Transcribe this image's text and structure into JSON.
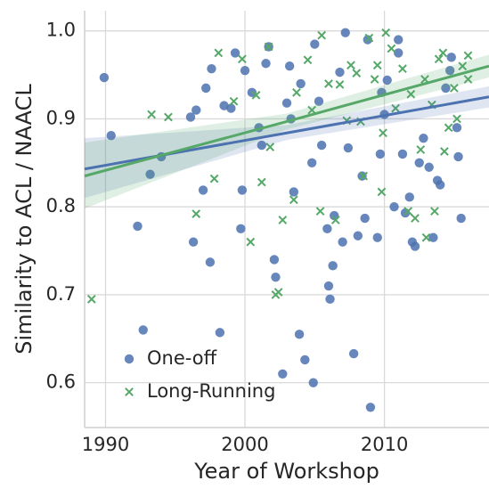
{
  "chart_data": {
    "type": "scatter",
    "xlabel": "Year of Workshop",
    "ylabel": "Similarity to ACL / NAACL",
    "xlim": [
      1988.5,
      2017.5
    ],
    "ylim": [
      0.549,
      1.023
    ],
    "xticks": [
      1990,
      2000,
      2010
    ],
    "yticks": [
      0.6,
      0.7,
      0.8,
      0.9,
      {
        "value": 1,
        "label": "1.0"
      }
    ],
    "grid": true,
    "legend": "lower left",
    "series": [
      {
        "name": "One-off",
        "color": "#4c72b0",
        "marker": "o",
        "x": [
          1989.9,
          1990.4,
          1992.3,
          1992.7,
          1993.2,
          1994,
          1996.1,
          1996.3,
          1996.5,
          1997,
          1997.2,
          1997.5,
          1997.6,
          1998.2,
          1998.5,
          1999,
          1999.3,
          1999.7,
          1999.8,
          2000,
          2000.5,
          2001,
          2001.5,
          2001.7,
          2002.1,
          2002.2,
          2002.7,
          2003,
          2003.3,
          2003.5,
          2003.9,
          2004,
          2004.3,
          2004.8,
          2004.9,
          2005,
          2005.3,
          2005.5,
          2005.9,
          2006,
          2006.1,
          2006.3,
          2006.8,
          2007,
          2007.4,
          2007.8,
          2008.1,
          2008.4,
          2008.6,
          2008.8,
          2009,
          2009.5,
          2009.7,
          2010,
          2010.2,
          2010.7,
          2011,
          2011.3,
          2011.5,
          2011.8,
          2012,
          2012.2,
          2012.5,
          2012.8,
          2013.2,
          2013.5,
          2013.8,
          2014,
          2014.4,
          2014.7,
          2015.2,
          2015.5,
          2015.3,
          2014.8,
          2006.4,
          2007.2,
          2003.2,
          2001.2,
          2009.8,
          2011
        ],
        "values": [
          0.947,
          0.881,
          0.778,
          0.66,
          0.837,
          0.857,
          0.902,
          0.76,
          0.91,
          0.819,
          0.935,
          0.737,
          0.957,
          0.657,
          0.915,
          0.912,
          0.975,
          0.775,
          0.819,
          0.955,
          0.93,
          0.89,
          0.963,
          0.982,
          0.74,
          0.72,
          0.61,
          0.918,
          0.9,
          0.817,
          0.655,
          0.94,
          0.626,
          0.85,
          0.6,
          0.985,
          0.92,
          0.87,
          0.775,
          0.71,
          0.695,
          0.733,
          0.953,
          0.76,
          0.867,
          0.633,
          0.767,
          0.835,
          0.787,
          0.99,
          0.572,
          0.765,
          0.86,
          0.905,
          0.944,
          0.8,
          0.99,
          0.86,
          0.793,
          0.811,
          0.76,
          0.755,
          0.85,
          0.878,
          0.845,
          0.765,
          0.83,
          0.825,
          0.935,
          0.955,
          0.89,
          0.787,
          0.857,
          0.97,
          0.79,
          0.998,
          0.96,
          0.87,
          0.93,
          0.975
        ],
        "fit": {
          "x": [
            1988.5,
            2003,
            2017.5
          ],
          "y": [
            0.843,
            0.884,
            0.925
          ],
          "lower": [
            0.81,
            0.876,
            0.913
          ],
          "upper": [
            0.878,
            0.893,
            0.937
          ]
        }
      },
      {
        "name": "Long-Running",
        "color": "#55a868",
        "marker": "x",
        "x": [
          1989,
          1993.3,
          1994.5,
          1996.5,
          1997.8,
          1998.1,
          1999.8,
          2000.4,
          2001.2,
          2001.7,
          2001.8,
          2002.2,
          2002.4,
          2002.7,
          2003.5,
          2004.5,
          2004.8,
          2005.4,
          2005.5,
          2006.5,
          2006.8,
          2007.3,
          2007.6,
          2008.3,
          2008.5,
          2008.9,
          2009.3,
          2009.8,
          2009.9,
          2010.1,
          2010.5,
          2011.3,
          2011.7,
          2012.2,
          2012.6,
          2013,
          2013.4,
          2013.6,
          2013.9,
          2014.2,
          2014.3,
          2014.6,
          2015.2,
          2015.6,
          2016,
          2012.9,
          2011.9,
          2010.8,
          2009.5,
          2008,
          2006,
          2003.7,
          2000.8,
          1999.2,
          2015,
          2016
        ],
        "values": [
          0.695,
          0.905,
          0.902,
          0.792,
          0.832,
          0.975,
          0.968,
          0.76,
          0.828,
          0.982,
          0.868,
          0.7,
          0.703,
          0.785,
          0.808,
          0.967,
          0.91,
          0.795,
          0.995,
          0.785,
          0.939,
          0.898,
          0.961,
          0.897,
          0.835,
          0.992,
          0.945,
          0.817,
          0.884,
          0.998,
          0.98,
          0.957,
          0.795,
          0.787,
          0.865,
          0.765,
          0.916,
          0.795,
          0.968,
          0.975,
          0.863,
          0.89,
          0.9,
          0.96,
          0.945,
          0.945,
          0.928,
          0.912,
          0.961,
          0.952,
          0.94,
          0.93,
          0.927,
          0.92,
          0.935,
          0.972
        ],
        "fit": {
          "x": [
            1988.5,
            2003,
            2017.5
          ],
          "y": [
            0.835,
            0.897,
            0.96
          ],
          "lower": [
            0.798,
            0.888,
            0.947
          ],
          "upper": [
            0.873,
            0.906,
            0.973
          ]
        }
      }
    ]
  }
}
